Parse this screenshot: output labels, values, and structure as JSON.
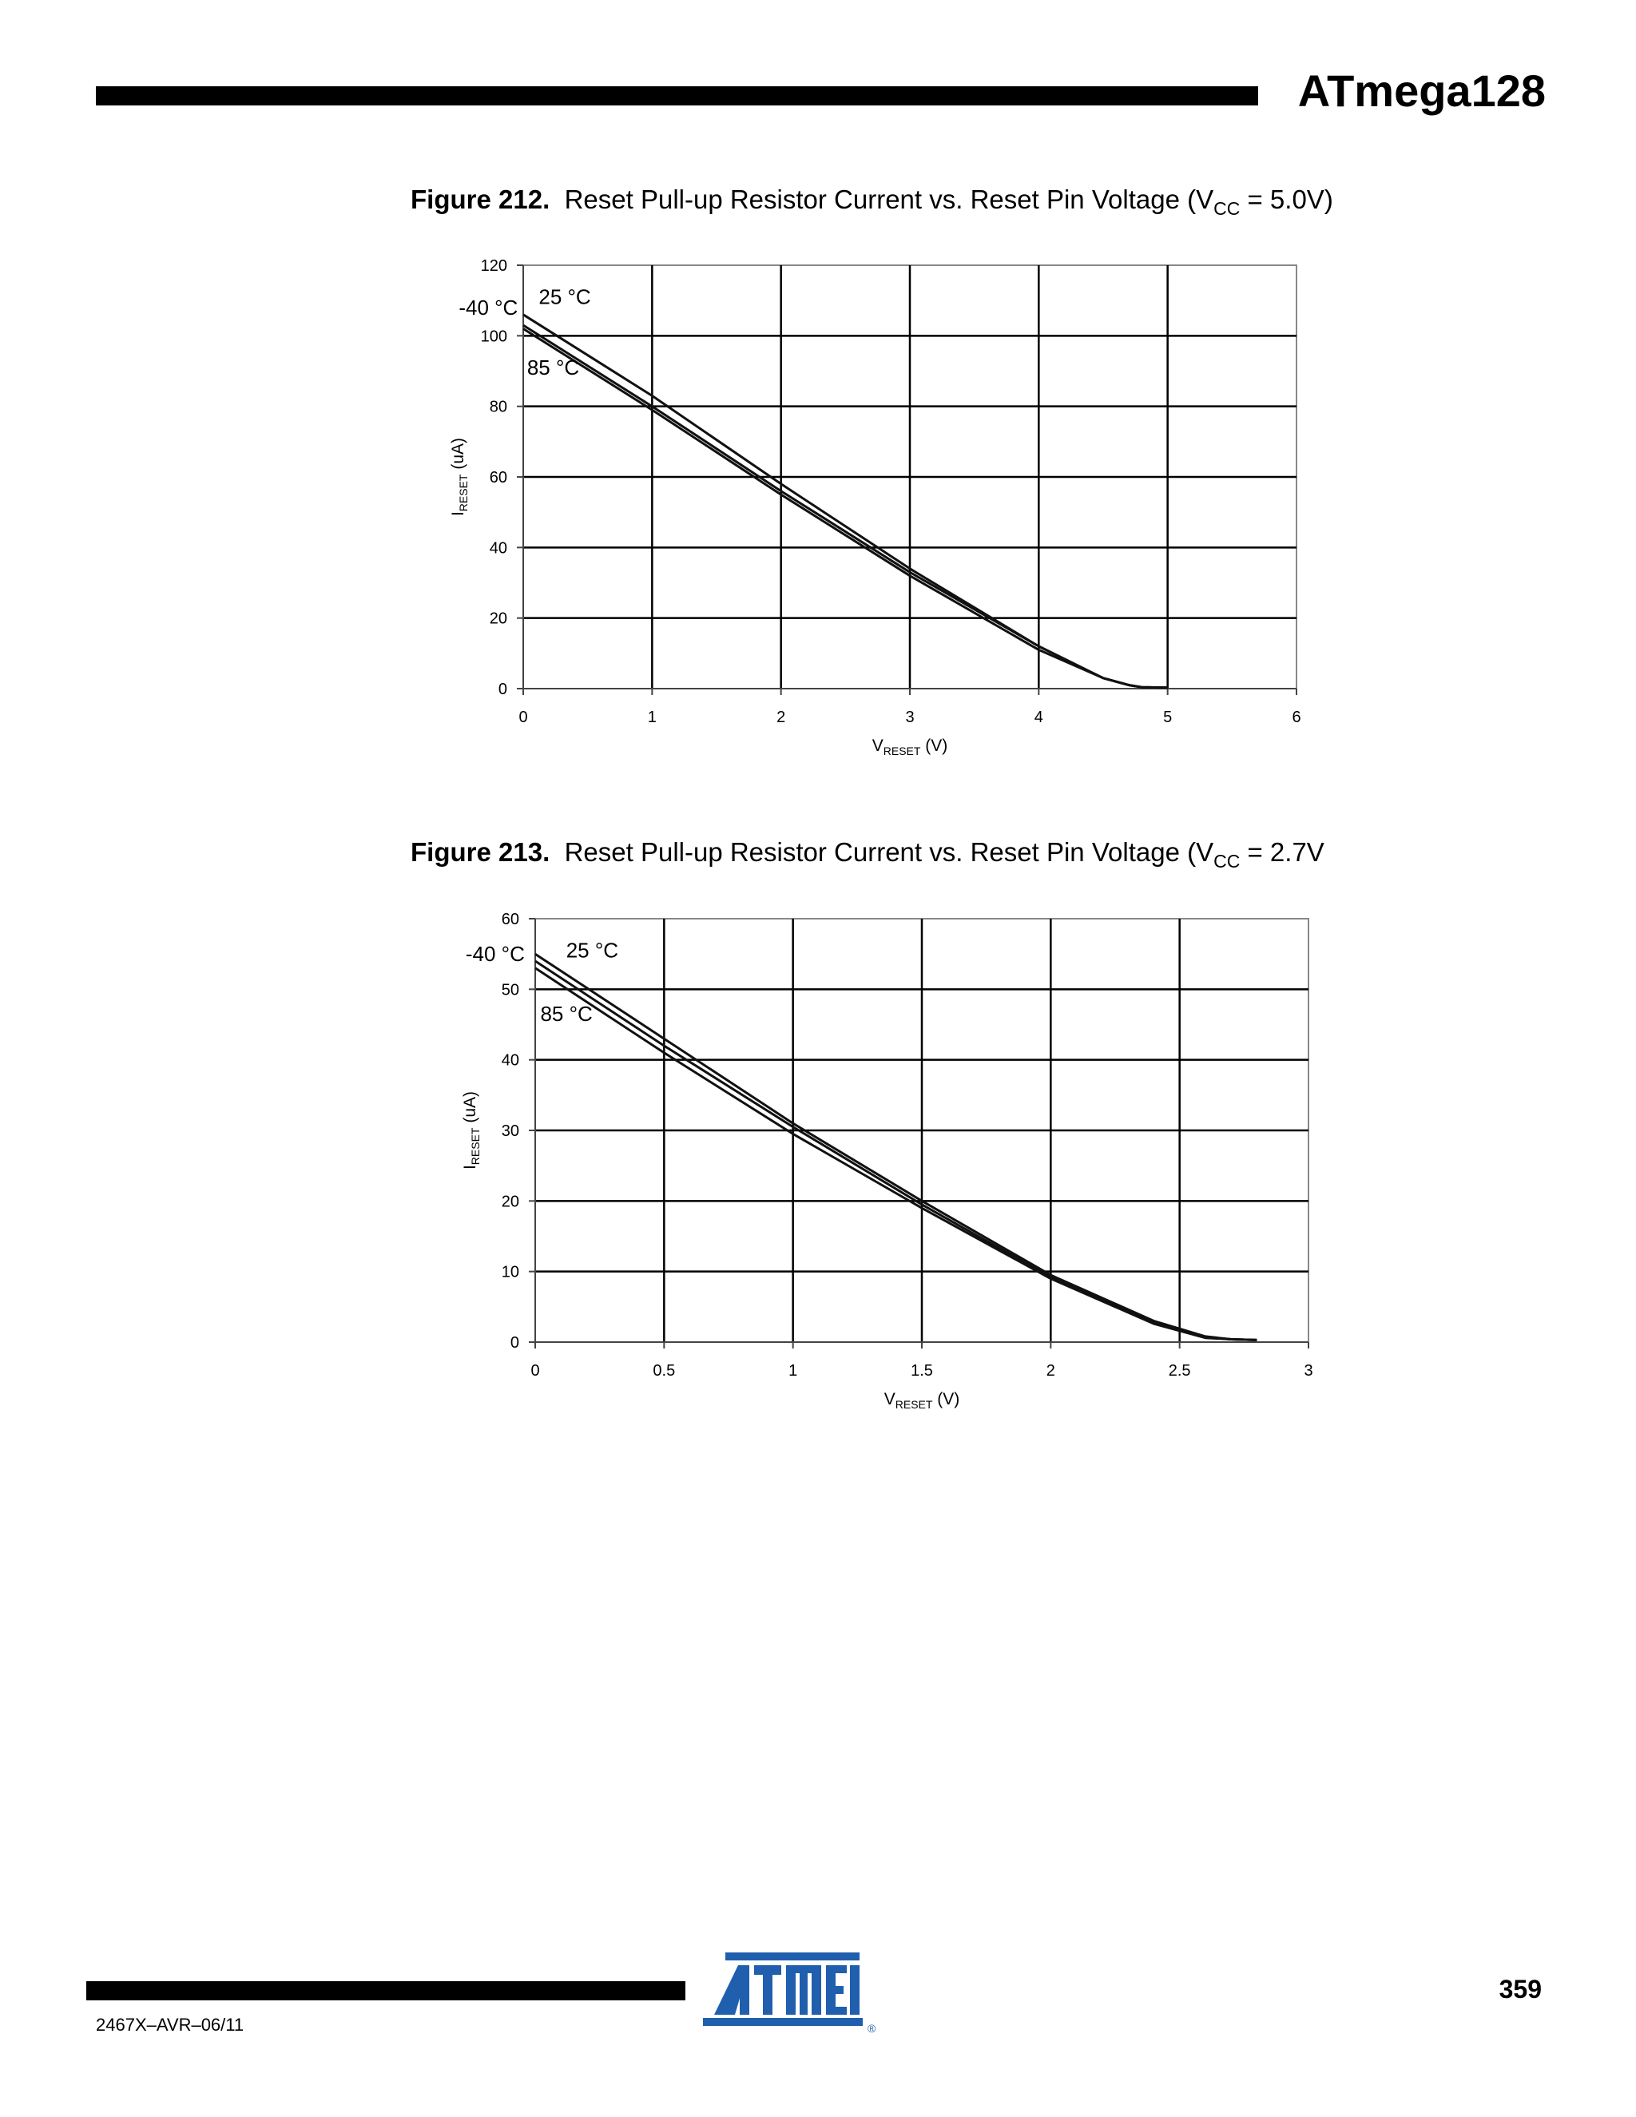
{
  "header": {
    "title": "ATmega128"
  },
  "footer": {
    "doc_code": "2467X–AVR–06/11",
    "page_number": "359",
    "logo_text": "ATMEL",
    "logo_color": "#1f5fae"
  },
  "figures": [
    {
      "number": "Figure 212.",
      "caption_pre": "Reset Pull-up Resistor Current vs. Reset Pin Voltage (V",
      "caption_sub": "CC",
      "caption_post": " = 5.0V)"
    },
    {
      "number": "Figure 213.",
      "caption_pre": "Reset Pull-up Resistor Current vs. Reset Pin Voltage (V",
      "caption_sub": "CC",
      "caption_post": " = 2.7V"
    }
  ],
  "chart_data": [
    {
      "type": "line",
      "xlabel_main": "V",
      "xlabel_sub": "RESET",
      "xlabel_unit": " (V)",
      "ylabel_main": "I",
      "ylabel_sub": "RESET",
      "ylabel_unit": " (uA)",
      "xlim": [
        0,
        6
      ],
      "ylim": [
        0,
        120
      ],
      "xticks": [
        "0",
        "1",
        "2",
        "3",
        "4",
        "5",
        "6"
      ],
      "yticks": [
        "0",
        "20",
        "40",
        "60",
        "80",
        "100",
        "120"
      ],
      "grid": true,
      "series": [
        {
          "name": "25 °C",
          "x": [
            0,
            1,
            2,
            3,
            4,
            4.5,
            4.7,
            4.8,
            5.0
          ],
          "y": [
            106,
            83,
            58,
            34,
            12,
            3,
            1,
            0.4,
            0.3
          ]
        },
        {
          "name": "-40 °C",
          "x": [
            0,
            1,
            2,
            3,
            4,
            4.5,
            4.7,
            4.8,
            5.0
          ],
          "y": [
            103,
            80,
            56,
            33,
            12,
            3,
            1,
            0.4,
            0.3
          ]
        },
        {
          "name": "85 °C",
          "x": [
            0,
            1,
            2,
            3,
            4,
            4.5,
            4.7,
            4.8,
            5.0
          ],
          "y": [
            102,
            79,
            55,
            32,
            11,
            3,
            1,
            0.4,
            0.3
          ]
        }
      ],
      "annotations": [
        {
          "text": "25 °C",
          "x": 0.12,
          "y": 109
        },
        {
          "text": "-40 °C",
          "x": -0.5,
          "y": 106
        },
        {
          "text": "85 °C",
          "x": 0.03,
          "y": 89
        }
      ]
    },
    {
      "type": "line",
      "xlabel_main": "V",
      "xlabel_sub": "RESET",
      "xlabel_unit": " (V)",
      "ylabel_main": "I",
      "ylabel_sub": "RESET",
      "ylabel_unit": " (uA)",
      "xlim": [
        0,
        3
      ],
      "ylim": [
        0,
        60
      ],
      "xticks": [
        "0",
        "0.5",
        "1",
        "1.5",
        "2",
        "2.5",
        "3"
      ],
      "yticks": [
        "0",
        "10",
        "20",
        "30",
        "40",
        "50",
        "60"
      ],
      "grid": true,
      "series": [
        {
          "name": "25 °C",
          "x": [
            0,
            0.5,
            1,
            1.5,
            2,
            2.4,
            2.6,
            2.7,
            2.8
          ],
          "y": [
            55,
            43,
            31,
            20,
            9.5,
            3,
            0.8,
            0.4,
            0.3
          ]
        },
        {
          "name": "-40 °C",
          "x": [
            0,
            0.5,
            1,
            1.5,
            2,
            2.4,
            2.6,
            2.7,
            2.8
          ],
          "y": [
            54,
            42,
            30.5,
            19.5,
            9.2,
            2.8,
            0.7,
            0.4,
            0.3
          ]
        },
        {
          "name": "85 °C",
          "x": [
            0,
            0.5,
            1,
            1.5,
            2,
            2.4,
            2.6,
            2.7,
            2.8
          ],
          "y": [
            53,
            41,
            29.5,
            19,
            9,
            2.6,
            0.6,
            0.4,
            0.3
          ]
        }
      ],
      "annotations": [
        {
          "text": "25 °C",
          "x": 0.12,
          "y": 54.5
        },
        {
          "text": "-40 °C",
          "x": -0.27,
          "y": 54
        },
        {
          "text": "85 °C",
          "x": 0.02,
          "y": 45.5
        }
      ]
    }
  ]
}
